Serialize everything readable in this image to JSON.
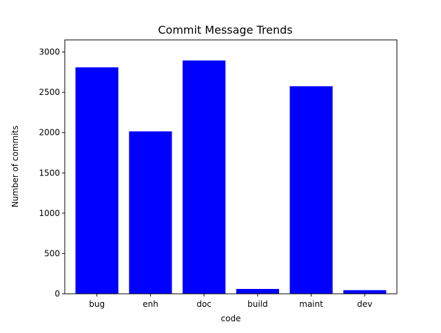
{
  "chart_data": {
    "type": "bar",
    "title": "Commit Message Trends",
    "xlabel": "code",
    "ylabel": "Number of commits",
    "categories": [
      "bug",
      "enh",
      "doc",
      "build",
      "maint",
      "dev"
    ],
    "values": [
      2810,
      2015,
      2895,
      60,
      2575,
      45
    ],
    "ylim": [
      0,
      3000
    ],
    "yticks": [
      0,
      500,
      1000,
      1500,
      2000,
      2500,
      3000
    ],
    "ytick_labels": [
      "0",
      "500",
      "1000",
      "1500",
      "2000",
      "2500",
      "3000"
    ],
    "bar_color": "#0000ff",
    "grid": false,
    "legend": "none"
  }
}
